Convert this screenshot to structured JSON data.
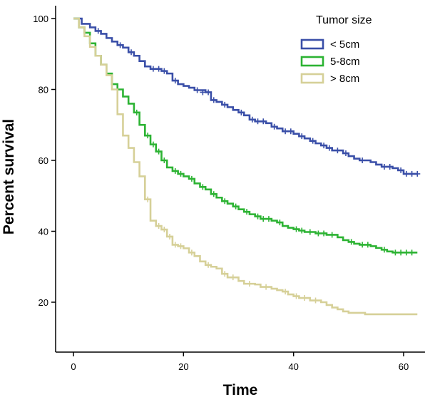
{
  "chart_data": {
    "type": "line",
    "subtype": "kaplan-meier",
    "title": "",
    "xlabel": "Time",
    "ylabel": "Percent survival",
    "xlim": [
      -5,
      63
    ],
    "ylim": [
      7,
      102
    ],
    "xticks": [
      0,
      20,
      40,
      60
    ],
    "yticks": [
      20,
      40,
      60,
      80,
      100
    ],
    "grid": false,
    "legend": {
      "title": "Tumor size",
      "position": "top-right"
    },
    "series": [
      {
        "name": "< 5cm",
        "color": "#3a4fa8",
        "steps": [
          [
            0,
            100
          ],
          [
            1.5,
            98.5
          ],
          [
            3,
            97.5
          ],
          [
            4,
            96.5
          ],
          [
            5,
            95.7
          ],
          [
            6,
            94.5
          ],
          [
            7,
            93.5
          ],
          [
            8,
            92.5
          ],
          [
            9,
            91.8
          ],
          [
            10,
            90.5
          ],
          [
            11,
            89.5
          ],
          [
            12,
            88
          ],
          [
            13,
            86.5
          ],
          [
            14,
            85.8
          ],
          [
            16,
            85.2
          ],
          [
            17,
            84.5
          ],
          [
            18,
            82.5
          ],
          [
            19,
            81.5
          ],
          [
            20,
            81
          ],
          [
            21,
            80.5
          ],
          [
            22,
            79.8
          ],
          [
            24,
            79.2
          ],
          [
            25,
            77
          ],
          [
            26,
            76.5
          ],
          [
            27,
            75.7
          ],
          [
            28,
            75
          ],
          [
            29,
            74.2
          ],
          [
            30,
            73.5
          ],
          [
            31,
            72.7
          ],
          [
            32,
            71.5
          ],
          [
            33,
            71
          ],
          [
            35,
            70.5
          ],
          [
            36,
            69.5
          ],
          [
            37,
            69
          ],
          [
            38,
            68.2
          ],
          [
            40,
            67.5
          ],
          [
            41,
            66.8
          ],
          [
            42,
            66.2
          ],
          [
            43,
            65.5
          ],
          [
            44,
            64.8
          ],
          [
            45,
            64.2
          ],
          [
            46,
            63.5
          ],
          [
            47,
            62.8
          ],
          [
            49,
            62
          ],
          [
            50,
            61.2
          ],
          [
            51,
            60.5
          ],
          [
            52,
            60
          ],
          [
            54,
            59.5
          ],
          [
            55,
            58.8
          ],
          [
            56,
            58.2
          ],
          [
            58,
            57.8
          ],
          [
            59,
            57.2
          ],
          [
            60,
            56.2
          ],
          [
            62.5,
            56.2
          ]
        ],
        "censored": [
          [
            4.5,
            96.5
          ],
          [
            8.5,
            92.5
          ],
          [
            10.5,
            90.5
          ],
          [
            14.5,
            85.8
          ],
          [
            15.5,
            85.8
          ],
          [
            16.5,
            85.2
          ],
          [
            18.5,
            82.5
          ],
          [
            22.5,
            79.8
          ],
          [
            23.5,
            79.2
          ],
          [
            24.5,
            79.2
          ],
          [
            25.5,
            77
          ],
          [
            27.5,
            75.7
          ],
          [
            30.5,
            73.5
          ],
          [
            32.5,
            71.5
          ],
          [
            33.5,
            71
          ],
          [
            34.5,
            71
          ],
          [
            36.5,
            69.5
          ],
          [
            38.5,
            68.2
          ],
          [
            39.5,
            68.2
          ],
          [
            41.5,
            66.8
          ],
          [
            43.5,
            65.5
          ],
          [
            45.5,
            64.2
          ],
          [
            46.5,
            63.5
          ],
          [
            48,
            62.8
          ],
          [
            49.5,
            62
          ],
          [
            52.5,
            60
          ],
          [
            56.5,
            58.2
          ],
          [
            57.5,
            58.2
          ],
          [
            59.5,
            57.2
          ],
          [
            60.5,
            56.2
          ],
          [
            61.5,
            56.2
          ],
          [
            62.5,
            56.2
          ]
        ]
      },
      {
        "name": "5-8cm",
        "color": "#2cb333",
        "steps": [
          [
            0,
            100
          ],
          [
            1,
            97.5
          ],
          [
            2,
            96
          ],
          [
            3,
            93
          ],
          [
            4,
            89.5
          ],
          [
            5,
            87
          ],
          [
            6,
            84.5
          ],
          [
            7,
            81.5
          ],
          [
            8,
            80
          ],
          [
            9,
            78
          ],
          [
            10,
            76
          ],
          [
            11,
            73.5
          ],
          [
            12,
            70
          ],
          [
            13,
            67
          ],
          [
            14,
            64.5
          ],
          [
            15,
            62.5
          ],
          [
            16,
            60
          ],
          [
            17,
            58
          ],
          [
            18,
            57
          ],
          [
            19,
            56.2
          ],
          [
            20,
            55.5
          ],
          [
            21,
            54.8
          ],
          [
            22,
            53.5
          ],
          [
            23,
            52.5
          ],
          [
            24,
            51.8
          ],
          [
            25,
            50.5
          ],
          [
            26,
            49.5
          ],
          [
            27,
            48.5
          ],
          [
            28,
            47.8
          ],
          [
            29,
            47
          ],
          [
            30,
            46.2
          ],
          [
            31,
            45.5
          ],
          [
            32,
            44.8
          ],
          [
            33,
            44.2
          ],
          [
            34,
            43.5
          ],
          [
            36,
            43
          ],
          [
            37,
            42.5
          ],
          [
            38,
            41.5
          ],
          [
            39,
            41
          ],
          [
            40,
            40.6
          ],
          [
            41,
            40.2
          ],
          [
            42,
            39.8
          ],
          [
            44,
            39.4
          ],
          [
            46,
            39
          ],
          [
            48,
            38.3
          ],
          [
            49,
            37.5
          ],
          [
            50,
            37
          ],
          [
            51,
            36.5
          ],
          [
            52,
            36.2
          ],
          [
            54,
            35.8
          ],
          [
            55,
            35.3
          ],
          [
            56,
            34.8
          ],
          [
            57,
            34.3
          ],
          [
            58,
            34
          ],
          [
            62.5,
            34
          ]
        ],
        "censored": [
          [
            11.5,
            73.5
          ],
          [
            13.5,
            67
          ],
          [
            14.5,
            64.5
          ],
          [
            15.5,
            62.5
          ],
          [
            16.5,
            60
          ],
          [
            18.5,
            57
          ],
          [
            19.5,
            56.2
          ],
          [
            21.5,
            54.8
          ],
          [
            23.5,
            52.5
          ],
          [
            25.5,
            50.5
          ],
          [
            27.5,
            48.5
          ],
          [
            29.5,
            47
          ],
          [
            31.5,
            45.5
          ],
          [
            33.5,
            44.2
          ],
          [
            34.5,
            43.5
          ],
          [
            35.5,
            43.5
          ],
          [
            37.5,
            42.5
          ],
          [
            40.5,
            40.6
          ],
          [
            41.5,
            40.2
          ],
          [
            43,
            39.8
          ],
          [
            44.5,
            39.4
          ],
          [
            45.5,
            39.4
          ],
          [
            47,
            39
          ],
          [
            50.5,
            37
          ],
          [
            52.5,
            36.2
          ],
          [
            53.5,
            36.2
          ],
          [
            56.5,
            34.8
          ],
          [
            58.5,
            34
          ],
          [
            59.5,
            34
          ],
          [
            60.5,
            34
          ],
          [
            61.5,
            34
          ]
        ]
      },
      {
        "name": "> 8cm",
        "color": "#d6d098",
        "steps": [
          [
            0,
            100
          ],
          [
            1,
            97.5
          ],
          [
            2,
            95
          ],
          [
            3,
            92
          ],
          [
            4,
            89.5
          ],
          [
            5,
            87
          ],
          [
            6,
            84
          ],
          [
            7,
            80
          ],
          [
            8,
            73
          ],
          [
            9,
            67
          ],
          [
            10,
            63.5
          ],
          [
            11,
            59.5
          ],
          [
            12,
            55.5
          ],
          [
            13,
            49
          ],
          [
            14,
            43
          ],
          [
            15,
            41.5
          ],
          [
            16,
            40.5
          ],
          [
            17,
            38.5
          ],
          [
            18,
            36.2
          ],
          [
            19,
            35.8
          ],
          [
            20,
            35.2
          ],
          [
            21,
            34
          ],
          [
            22,
            33
          ],
          [
            23,
            31.5
          ],
          [
            24,
            30.5
          ],
          [
            25,
            30
          ],
          [
            26,
            29.5
          ],
          [
            27,
            28
          ],
          [
            28,
            27
          ],
          [
            30,
            26
          ],
          [
            31,
            25.2
          ],
          [
            33,
            25
          ],
          [
            34,
            24.3
          ],
          [
            36,
            23.8
          ],
          [
            37,
            23.4
          ],
          [
            38,
            23
          ],
          [
            39,
            22.2
          ],
          [
            40,
            21.7
          ],
          [
            41,
            21.2
          ],
          [
            43,
            20.5
          ],
          [
            45,
            20
          ],
          [
            46,
            19.2
          ],
          [
            47,
            18.5
          ],
          [
            48,
            18
          ],
          [
            49,
            17.4
          ],
          [
            50,
            17
          ],
          [
            53,
            16.6
          ],
          [
            62.5,
            16.6
          ]
        ],
        "censored": [
          [
            13.5,
            49
          ],
          [
            15.5,
            41.5
          ],
          [
            16.5,
            40.5
          ],
          [
            17.5,
            38.5
          ],
          [
            18.5,
            36.2
          ],
          [
            19.5,
            35.8
          ],
          [
            21.5,
            34
          ],
          [
            24.5,
            30.5
          ],
          [
            27.5,
            28
          ],
          [
            29,
            27
          ],
          [
            32,
            25.2
          ],
          [
            35,
            24.3
          ],
          [
            38.5,
            23
          ],
          [
            40.5,
            21.7
          ],
          [
            42,
            21.2
          ],
          [
            44,
            20.5
          ]
        ]
      }
    ]
  }
}
